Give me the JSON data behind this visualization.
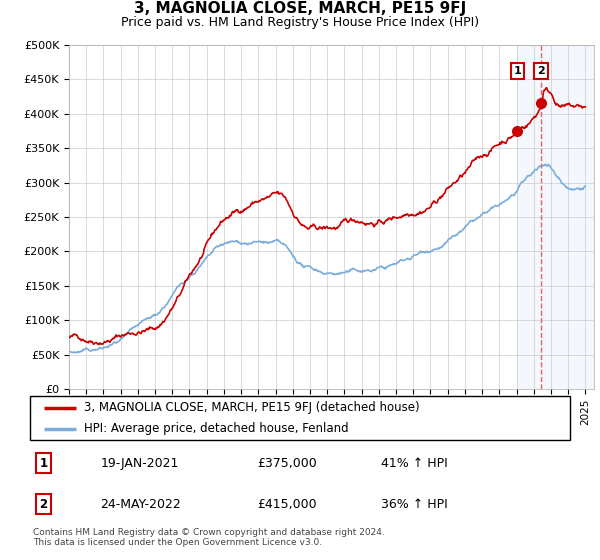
{
  "title": "3, MAGNOLIA CLOSE, MARCH, PE15 9FJ",
  "subtitle": "Price paid vs. HM Land Registry's House Price Index (HPI)",
  "red_line_label": "3, MAGNOLIA CLOSE, MARCH, PE15 9FJ (detached house)",
  "blue_line_label": "HPI: Average price, detached house, Fenland",
  "annotation1_date": "19-JAN-2021",
  "annotation1_value": "£375,000",
  "annotation1_hpi": "41% ↑ HPI",
  "annotation2_date": "24-MAY-2022",
  "annotation2_value": "£415,000",
  "annotation2_hpi": "36% ↑ HPI",
  "footer": "Contains HM Land Registry data © Crown copyright and database right 2024.\nThis data is licensed under the Open Government Licence v3.0.",
  "ylim": [
    0,
    500000
  ],
  "yticks": [
    0,
    50000,
    100000,
    150000,
    200000,
    250000,
    300000,
    350000,
    400000,
    450000,
    500000
  ],
  "ytick_labels": [
    "£0",
    "£50K",
    "£100K",
    "£150K",
    "£200K",
    "£250K",
    "£300K",
    "£350K",
    "£400K",
    "£450K",
    "£500K"
  ],
  "red_color": "#cc0000",
  "blue_color": "#7aaddb",
  "vline_color": "#dd6666",
  "span_color": "#ddeeff",
  "background_color": "#ffffff",
  "grid_color": "#cccccc",
  "annotation_box_color": "#cc0000",
  "ann1_x": 2021.05,
  "ann2_x": 2022.42,
  "ann1_y": 375000,
  "ann2_y": 415000,
  "xmin": 1995,
  "xmax": 2025.5
}
